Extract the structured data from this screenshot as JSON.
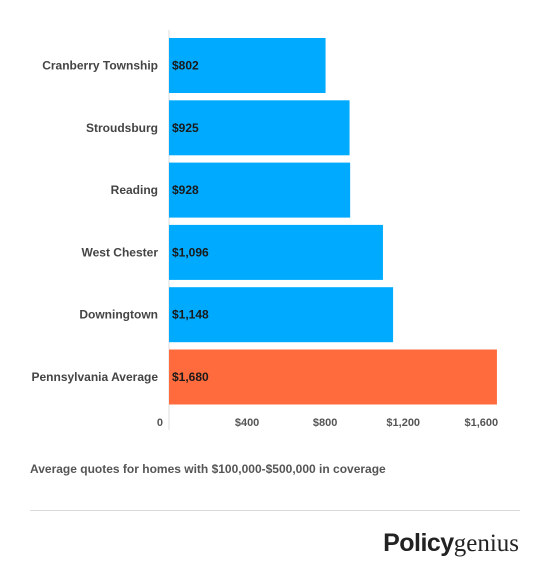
{
  "chart_data": {
    "type": "bar",
    "orientation": "horizontal",
    "categories": [
      "Cranberry Township",
      "Stroudsburg",
      "Reading",
      "West Chester",
      "Downingtown",
      "Pennsylvania Average"
    ],
    "values": [
      802,
      925,
      928,
      1096,
      1148,
      1680
    ],
    "value_labels": [
      "$802",
      "$925",
      "$928",
      "$1,096",
      "$1,148",
      "$1,680"
    ],
    "bar_colors": [
      "#00aaff",
      "#00aaff",
      "#00aaff",
      "#00aaff",
      "#00aaff",
      "#ff6b3d"
    ],
    "x_ticks": [
      0,
      400,
      800,
      1200,
      1600
    ],
    "x_tick_labels": [
      "0",
      "$400",
      "$800",
      "$1,200",
      "$1,600"
    ],
    "xlim": [
      0,
      1680
    ],
    "grid": false,
    "title": "",
    "xlabel": "",
    "ylabel": ""
  },
  "footnote": "Average quotes for homes with $100,000-$500,000 in coverage",
  "brand": {
    "part1": "Policy",
    "part2": "genius"
  }
}
